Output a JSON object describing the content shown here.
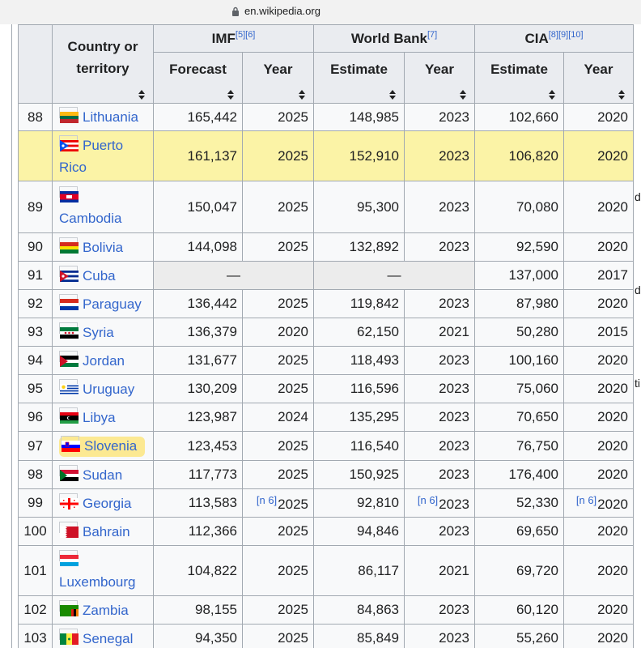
{
  "browser": {
    "url": "en.wikipedia.org"
  },
  "table": {
    "headers": {
      "country": "Country or territory",
      "imf": "IMF",
      "imf_refs": "[5][6]",
      "wb": "World Bank",
      "wb_refs": "[7]",
      "cia": "CIA",
      "cia_refs": "[8][9][10]",
      "imf_forecast": "Forecast",
      "imf_year": "Year",
      "wb_estimate": "Estimate",
      "wb_year": "Year",
      "cia_estimate": "Estimate",
      "cia_year": "Year"
    },
    "rows": [
      {
        "rank": "88",
        "country": "Lithuania",
        "imf": "165,442",
        "imf_year": "2025",
        "wb": "148,985",
        "wb_year": "2023",
        "cia": "102,660",
        "cia_year": "2020"
      },
      {
        "rank": "",
        "country": "Puerto Rico",
        "imf": "161,137",
        "imf_year": "2025",
        "wb": "152,910",
        "wb_year": "2023",
        "cia": "106,820",
        "cia_year": "2020"
      },
      {
        "rank": "89",
        "country": "Cambodia",
        "imf": "150,047",
        "imf_year": "2025",
        "wb": "95,300",
        "wb_year": "2023",
        "cia": "70,080",
        "cia_year": "2020"
      },
      {
        "rank": "90",
        "country": "Bolivia",
        "imf": "144,098",
        "imf_year": "2025",
        "wb": "132,892",
        "wb_year": "2023",
        "cia": "92,590",
        "cia_year": "2020"
      },
      {
        "rank": "91",
        "country": "Cuba",
        "imf": "—",
        "imf_year": "",
        "wb": "—",
        "wb_year": "",
        "cia": "137,000",
        "cia_year": "2017"
      },
      {
        "rank": "92",
        "country": "Paraguay",
        "imf": "136,442",
        "imf_year": "2025",
        "wb": "119,842",
        "wb_year": "2023",
        "cia": "87,980",
        "cia_year": "2020"
      },
      {
        "rank": "93",
        "country": "Syria",
        "imf": "136,379",
        "imf_year": "2020",
        "wb": "62,150",
        "wb_year": "2021",
        "cia": "50,280",
        "cia_year": "2015"
      },
      {
        "rank": "94",
        "country": "Jordan",
        "imf": "131,677",
        "imf_year": "2025",
        "wb": "118,493",
        "wb_year": "2023",
        "cia": "100,160",
        "cia_year": "2020"
      },
      {
        "rank": "95",
        "country": "Uruguay",
        "imf": "130,209",
        "imf_year": "2025",
        "wb": "116,596",
        "wb_year": "2023",
        "cia": "75,060",
        "cia_year": "2020"
      },
      {
        "rank": "96",
        "country": "Libya",
        "imf": "123,987",
        "imf_year": "2024",
        "wb": "135,295",
        "wb_year": "2023",
        "cia": "70,650",
        "cia_year": "2020"
      },
      {
        "rank": "97",
        "country": "Slovenia",
        "imf": "123,453",
        "imf_year": "2025",
        "wb": "116,540",
        "wb_year": "2023",
        "cia": "76,750",
        "cia_year": "2020"
      },
      {
        "rank": "98",
        "country": "Sudan",
        "imf": "117,773",
        "imf_year": "2025",
        "wb": "150,925",
        "wb_year": "2023",
        "cia": "176,400",
        "cia_year": "2020"
      },
      {
        "rank": "99",
        "country": "Georgia",
        "imf": "113,583",
        "imf_year": "2025",
        "wb": "92,810",
        "wb_year": "2023",
        "cia": "52,330",
        "cia_year": "2020",
        "note": "[n 6]"
      },
      {
        "rank": "100",
        "country": "Bahrain",
        "imf": "112,366",
        "imf_year": "2025",
        "wb": "94,846",
        "wb_year": "2023",
        "cia": "69,650",
        "cia_year": "2020"
      },
      {
        "rank": "101",
        "country": "Luxembourg",
        "imf": "104,822",
        "imf_year": "2025",
        "wb": "86,117",
        "wb_year": "2021",
        "cia": "69,720",
        "cia_year": "2020"
      },
      {
        "rank": "102",
        "country": "Zambia",
        "imf": "98,155",
        "imf_year": "2025",
        "wb": "84,863",
        "wb_year": "2023",
        "cia": "60,120",
        "cia_year": "2020"
      },
      {
        "rank": "103",
        "country": "Senegal",
        "imf": "94,350",
        "imf_year": "2025",
        "wb": "85,849",
        "wb_year": "2023",
        "cia": "55,260",
        "cia_year": "2020"
      }
    ]
  },
  "side_fragments": [
    "d",
    "d",
    "ti"
  ],
  "colors": {
    "highlight_row": "#fbf3a6",
    "link": "#3366cc",
    "header_bg": "#eaecf0",
    "marker": "#ffdd3c"
  }
}
